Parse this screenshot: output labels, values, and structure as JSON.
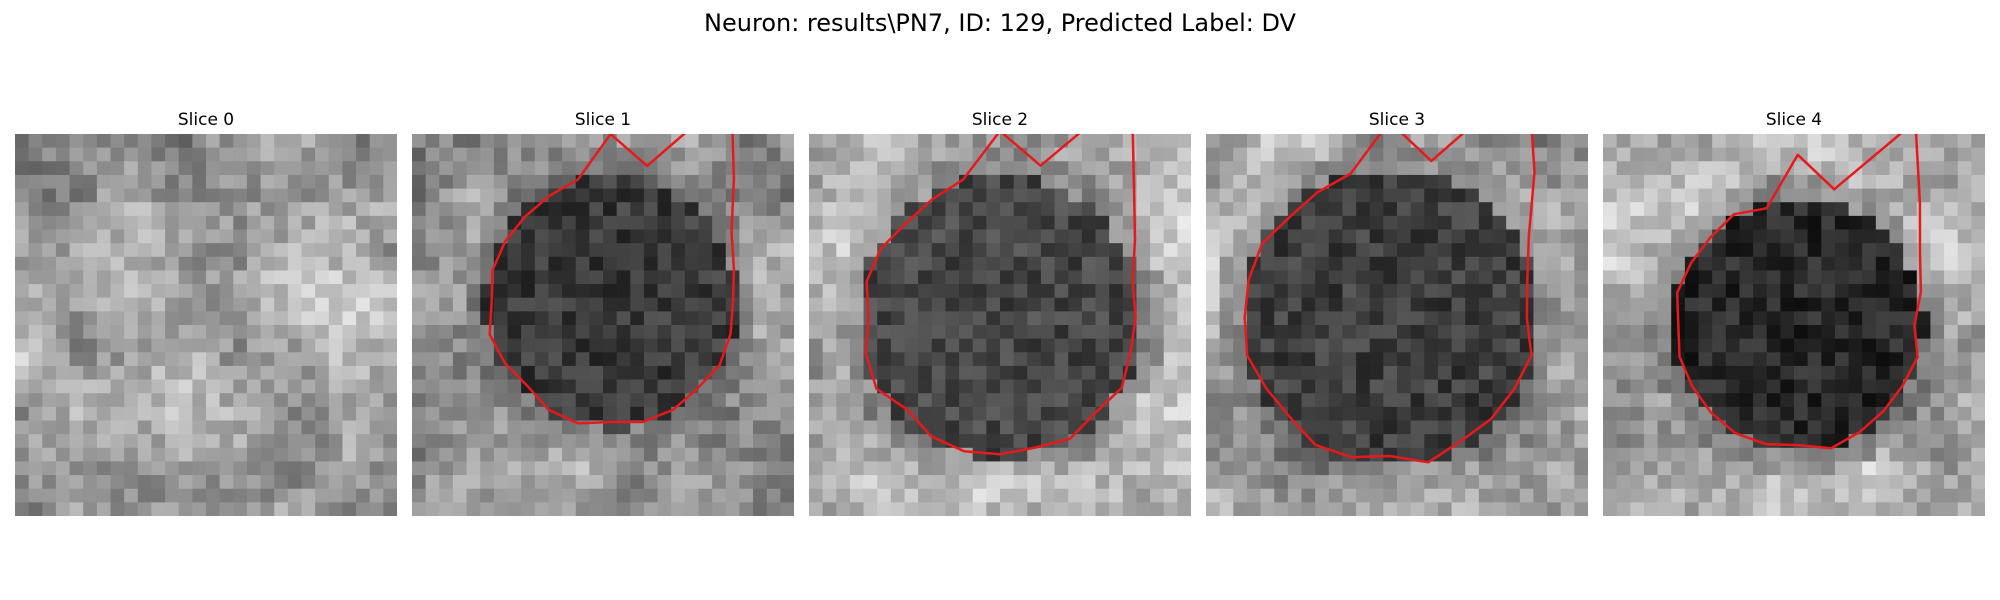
{
  "figure": {
    "title": "Neuron: results\\PN7, ID: 129, Predicted Label: DV"
  },
  "colors": {
    "background": "#ffffff",
    "contour": "#e8191c"
  },
  "slices": [
    {
      "title": "Slice 0",
      "has_contour": false,
      "seed": 11,
      "base": [
        150,
        165,
        178,
        168,
        158,
        150
      ]
    },
    {
      "title": "Slice 1",
      "has_contour": true,
      "seed": 23,
      "base": [
        140,
        150,
        150,
        145,
        150,
        160
      ],
      "contour_radius": 0.33,
      "contour_center": [
        0.52,
        0.44
      ],
      "dark_level": 58
    },
    {
      "title": "Slice 2",
      "has_contour": true,
      "seed": 37,
      "base": [
        180,
        195,
        190,
        176,
        178,
        190
      ],
      "contour_radius": 0.37,
      "contour_center": [
        0.5,
        0.48
      ],
      "dark_level": 70
    },
    {
      "title": "Slice 3",
      "has_contour": true,
      "seed": 41,
      "base": [
        160,
        168,
        165,
        150,
        150,
        160
      ],
      "contour_radius": 0.39,
      "contour_center": [
        0.48,
        0.48
      ],
      "dark_level": 62
    },
    {
      "title": "Slice 4",
      "has_contour": true,
      "seed": 53,
      "base": [
        188,
        196,
        182,
        160,
        170,
        182
      ],
      "contour_radius": 0.33,
      "contour_center": [
        0.51,
        0.5
      ],
      "dark_level": 40
    }
  ]
}
